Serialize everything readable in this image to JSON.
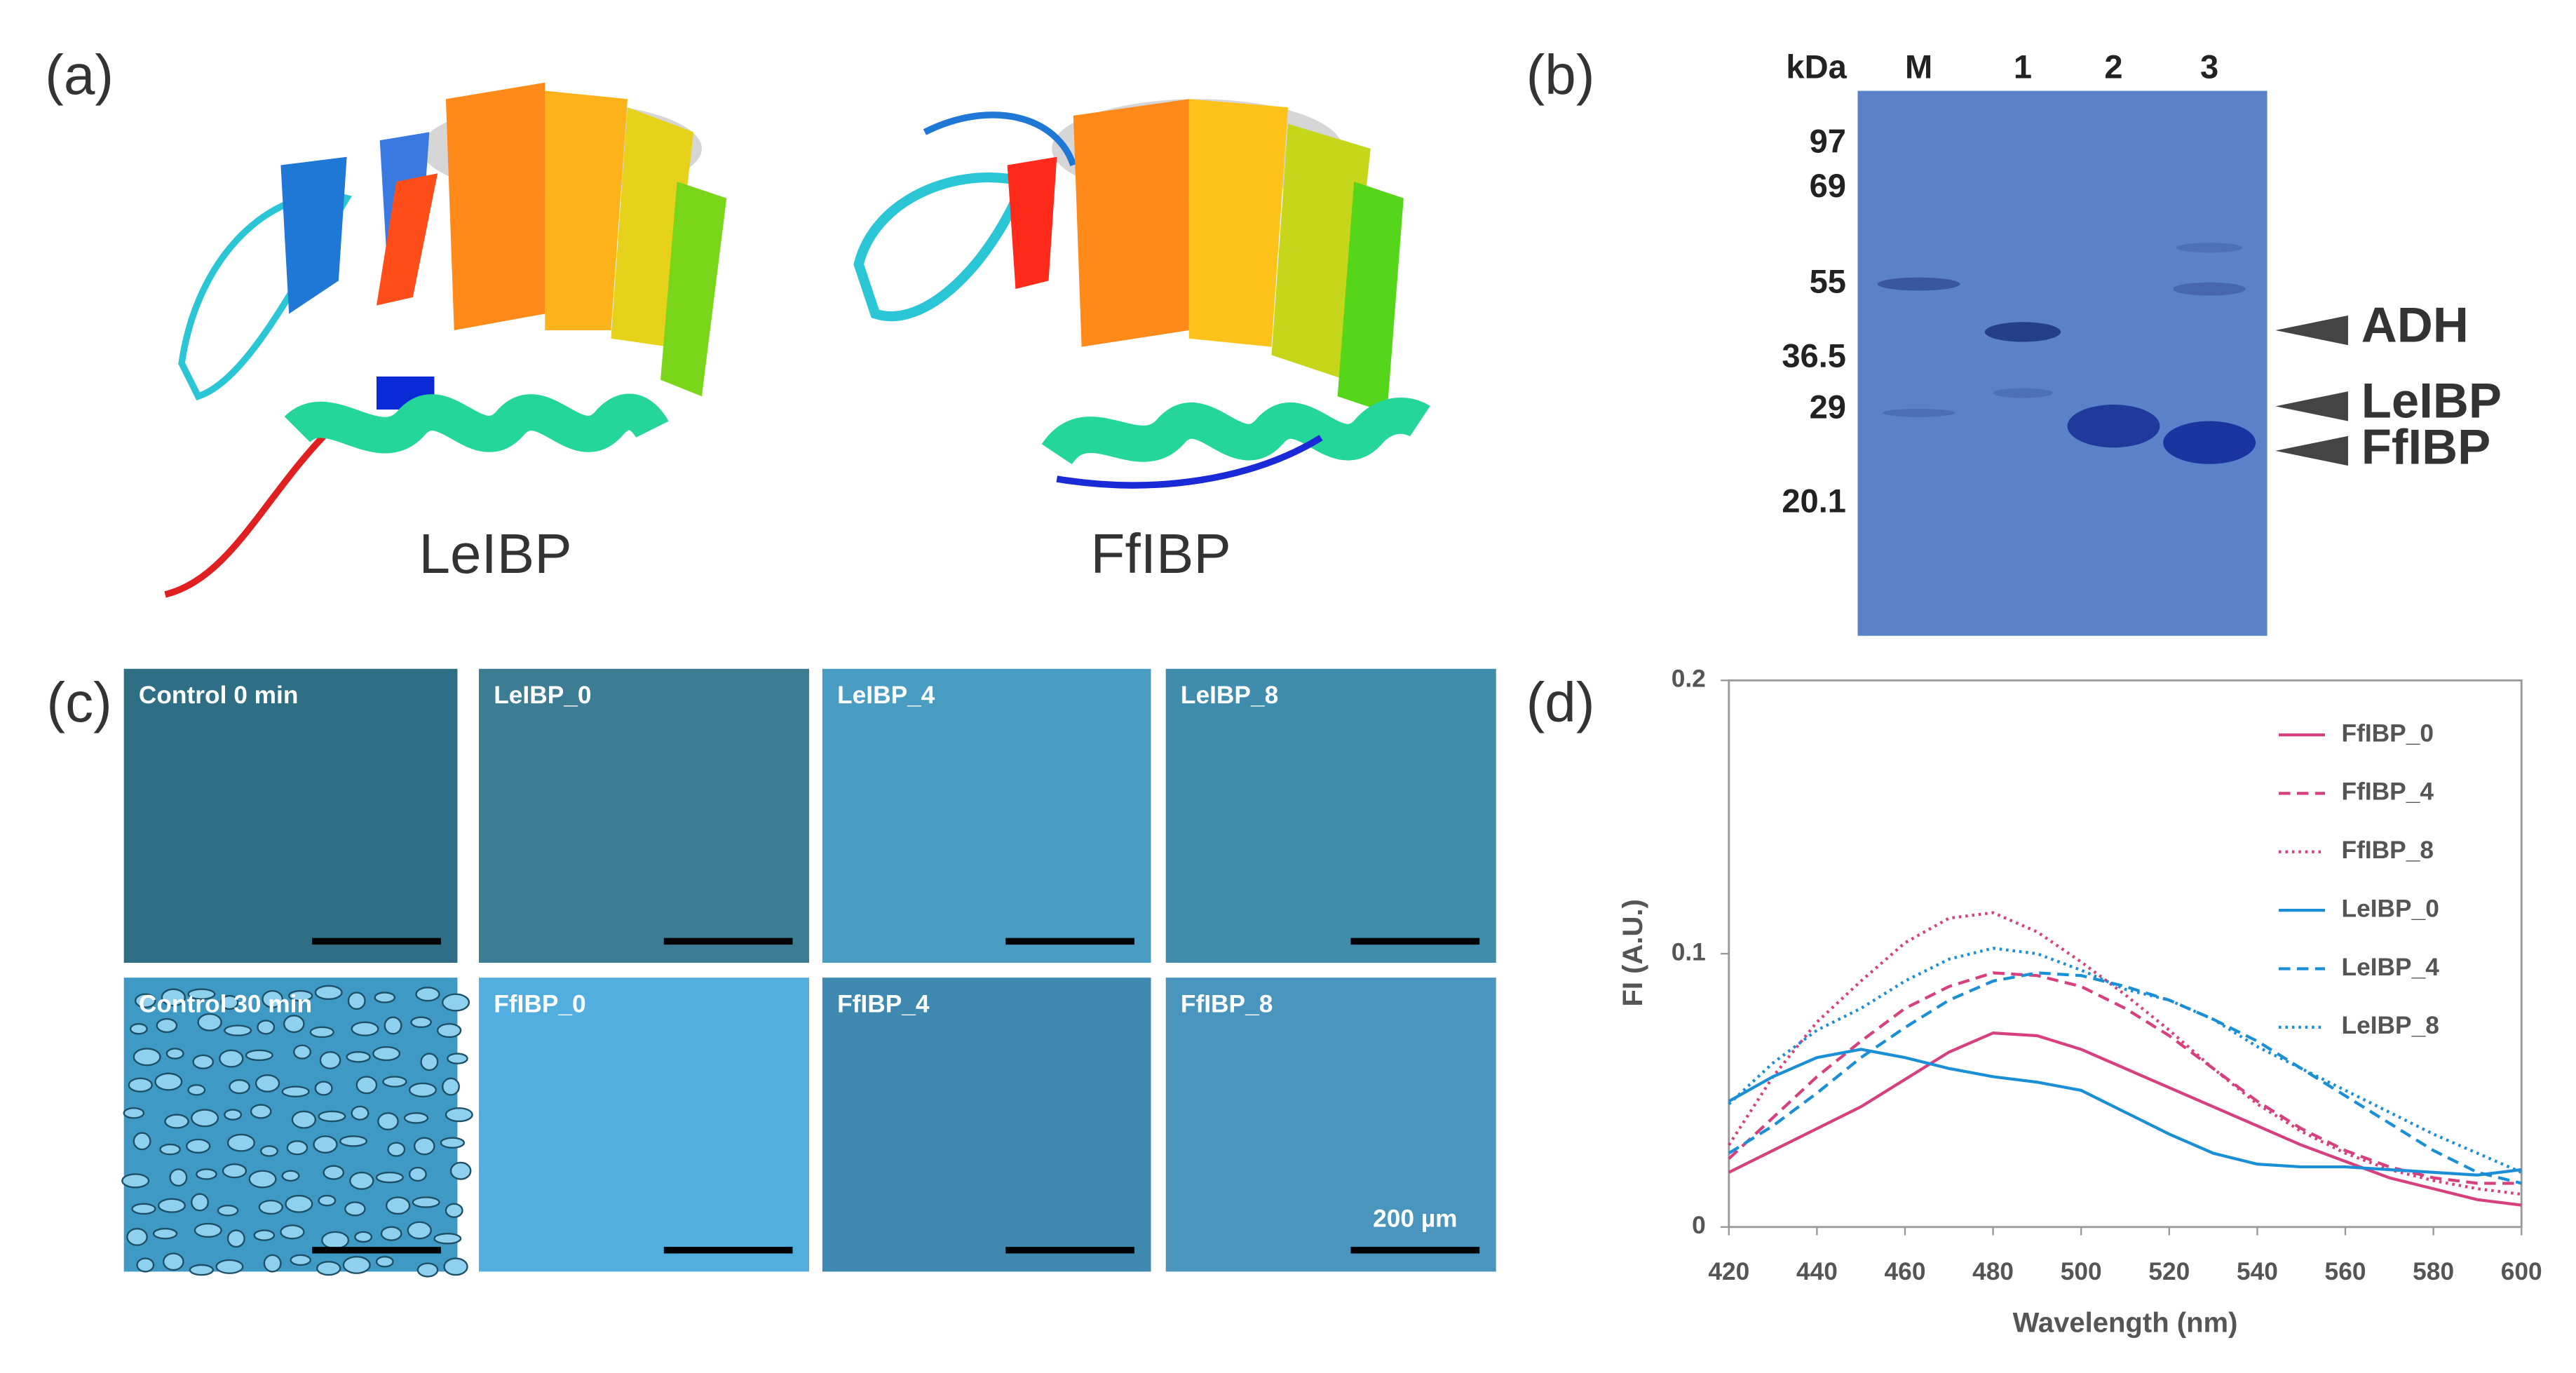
{
  "panel_labels": [
    "(a)",
    "(b)",
    "(c)",
    "(d)"
  ],
  "structures": [
    "LeIBP",
    "FfIBP"
  ],
  "gel": {
    "unit": "kDa",
    "lanes": [
      "M",
      "1",
      "2",
      "3"
    ],
    "markers": [
      "97",
      "69",
      "55",
      "36.5",
      "29",
      "20.1"
    ],
    "arrows": [
      "ADH",
      "LeIBP",
      "FfIBP"
    ]
  },
  "micrographs": {
    "labels": [
      "Control 0 min",
      "LeIBP_0",
      "LeIBP_4",
      "LeIBP_8",
      "Control 30 min",
      "FfIBP_0",
      "FfIBP_4",
      "FfIBP_8"
    ],
    "scale_bar": "200 µm"
  },
  "chart_data": {
    "type": "line",
    "x_label": "Wavelength (nm)",
    "y_label": "FI (A.U.)",
    "x": [
      420,
      430,
      440,
      450,
      460,
      470,
      480,
      490,
      500,
      510,
      520,
      530,
      540,
      550,
      560,
      570,
      580,
      590,
      600
    ],
    "xlim": [
      420,
      600
    ],
    "xticks": [
      420,
      440,
      460,
      480,
      500,
      520,
      540,
      560,
      580,
      600
    ],
    "ylim": [
      0,
      0.2
    ],
    "yticks": [
      0,
      0.1,
      0.2
    ],
    "legend": "upper right",
    "series": [
      {
        "name": "FfIBP_0",
        "color": "#d6407f",
        "style": "solid",
        "values": [
          0.02,
          0.028,
          0.036,
          0.044,
          0.054,
          0.064,
          0.071,
          0.07,
          0.065,
          0.058,
          0.051,
          0.044,
          0.037,
          0.03,
          0.024,
          0.018,
          0.014,
          0.01,
          0.008
        ]
      },
      {
        "name": "FfIBP_4",
        "color": "#d6407f",
        "style": "dashed",
        "values": [
          0.025,
          0.04,
          0.055,
          0.068,
          0.08,
          0.088,
          0.093,
          0.092,
          0.088,
          0.08,
          0.07,
          0.058,
          0.046,
          0.036,
          0.028,
          0.022,
          0.018,
          0.016,
          0.016
        ]
      },
      {
        "name": "FfIBP_8",
        "color": "#d6407f",
        "style": "dotted",
        "values": [
          0.03,
          0.055,
          0.075,
          0.09,
          0.104,
          0.113,
          0.115,
          0.108,
          0.097,
          0.085,
          0.072,
          0.058,
          0.045,
          0.035,
          0.027,
          0.021,
          0.017,
          0.014,
          0.012
        ]
      },
      {
        "name": "LeIBP_0",
        "color": "#1a8fd6",
        "style": "solid",
        "values": [
          0.046,
          0.055,
          0.062,
          0.065,
          0.062,
          0.058,
          0.055,
          0.053,
          0.05,
          0.042,
          0.034,
          0.027,
          0.023,
          0.022,
          0.022,
          0.021,
          0.02,
          0.019,
          0.021
        ]
      },
      {
        "name": "LeIBP_4",
        "color": "#1a8fd6",
        "style": "dashed",
        "values": [
          0.027,
          0.037,
          0.049,
          0.062,
          0.073,
          0.083,
          0.09,
          0.093,
          0.092,
          0.088,
          0.083,
          0.076,
          0.068,
          0.058,
          0.048,
          0.038,
          0.028,
          0.02,
          0.016
        ]
      },
      {
        "name": "LeIBP_8",
        "color": "#1a8fd6",
        "style": "dotted",
        "values": [
          0.045,
          0.06,
          0.072,
          0.08,
          0.09,
          0.098,
          0.102,
          0.1,
          0.094,
          0.087,
          0.083,
          0.076,
          0.066,
          0.058,
          0.05,
          0.042,
          0.034,
          0.027,
          0.02
        ]
      }
    ]
  }
}
